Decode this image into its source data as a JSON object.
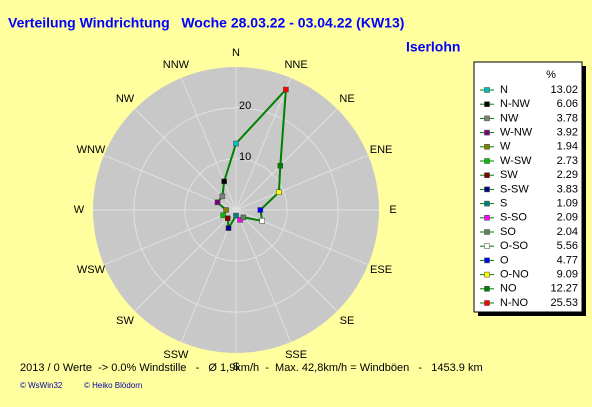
{
  "chart_data": {
    "type": "radar",
    "title": "Verteilung Windrichtung   Woche 28.03.22 - 03.04.22 (KW13)",
    "location": "Iserlohn",
    "directions": [
      "N",
      "NNE",
      "NE",
      "ENE",
      "E",
      "ESE",
      "SE",
      "SSE",
      "S",
      "SSW",
      "SW",
      "WSW",
      "W",
      "WNW",
      "NW",
      "NNW"
    ],
    "rlim": [
      0,
      28
    ],
    "rticks": [
      10,
      20
    ],
    "line_color": "#008000",
    "legend_header": "%",
    "series": [
      {
        "name": "N",
        "color": "#00c0c0",
        "value": 13.02
      },
      {
        "name": "N-NW",
        "color": "#000000",
        "value": 6.06
      },
      {
        "name": "NW",
        "color": "#808080",
        "value": 3.78
      },
      {
        "name": "W-NW",
        "color": "#800080",
        "value": 3.92
      },
      {
        "name": "W",
        "color": "#808000",
        "value": 1.94
      },
      {
        "name": "W-SW",
        "color": "#00c000",
        "value": 2.73
      },
      {
        "name": "SW",
        "color": "#800000",
        "value": 2.29
      },
      {
        "name": "S-SW",
        "color": "#000080",
        "value": 3.83
      },
      {
        "name": "S",
        "color": "#008080",
        "value": 1.09
      },
      {
        "name": "S-SO",
        "color": "#ff00ff",
        "value": 2.09
      },
      {
        "name": "SO",
        "color": "#608060",
        "value": 2.04
      },
      {
        "name": "O-SO",
        "color": "#ffffff",
        "value": 5.56
      },
      {
        "name": "O",
        "color": "#0000ff",
        "value": 4.77
      },
      {
        "name": "O-NO",
        "color": "#ffff00",
        "value": 9.09
      },
      {
        "name": "NO",
        "color": "#008000",
        "value": 12.27
      },
      {
        "name": "N-NO",
        "color": "#ff0000",
        "value": 25.53
      }
    ],
    "footer": "2013 / 0 Werte  -> 0.0% Windstille   -   Ø 1,9km/h  -  Max. 42,8km/h = Windböen   -   1453.9 km",
    "credit1": "© WsWin32",
    "credit2": "© Heiko Blödorn"
  }
}
